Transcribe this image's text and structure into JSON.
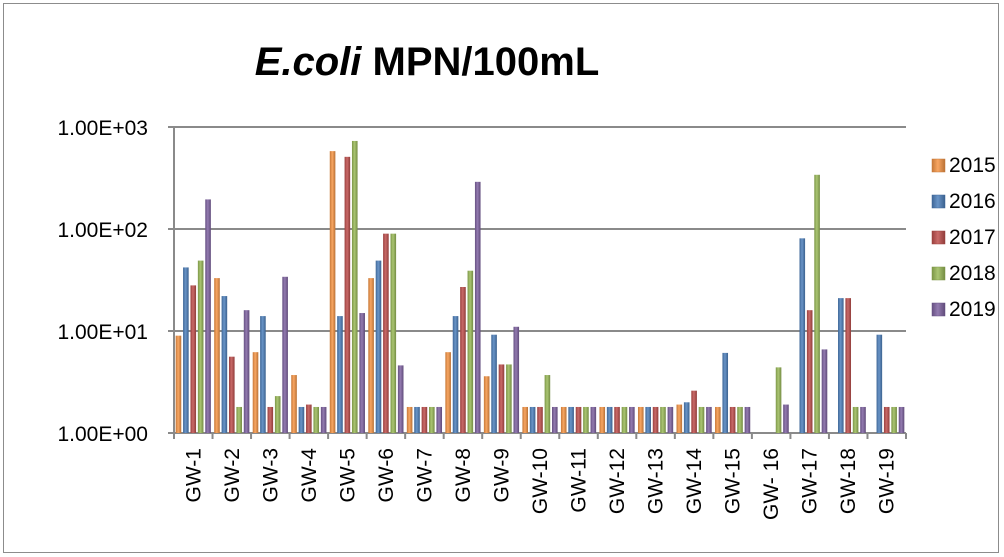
{
  "chart_data": {
    "type": "bar",
    "title_italic": "E.coli",
    "title_rest": " MPN/100mL",
    "xlabel": "",
    "ylabel": "",
    "scale": "log",
    "ylim": [
      1,
      1000
    ],
    "yticks": [
      1,
      10,
      100,
      1000
    ],
    "ytick_labels": [
      "1.00E+00",
      "1.00E+01",
      "1.00E+02",
      "1.00E+03"
    ],
    "grid": true,
    "legend_position": "right",
    "categories": [
      "GW-1",
      "GW-2",
      "GW-3",
      "GW-4",
      "GW-5",
      "GW-6",
      "GW-7",
      "GW-8",
      "GW-9",
      "GW-10",
      "GW-11",
      "GW-12",
      "GW-13",
      "GW-14",
      "GW-15",
      "GW- 16",
      "GW-17",
      "GW-18",
      "GW-19"
    ],
    "series": [
      {
        "name": "2015",
        "color": "#F79646",
        "values": [
          9,
          33,
          6.2,
          3.7,
          580,
          33,
          1.8,
          6.2,
          3.6,
          1.8,
          1.8,
          1.8,
          1.8,
          1.9,
          1.8,
          null,
          null,
          null,
          null
        ]
      },
      {
        "name": "2016",
        "color": "#4F81BD",
        "values": [
          42,
          22,
          14,
          1.8,
          14,
          49,
          1.8,
          14,
          9.2,
          1.8,
          1.8,
          1.8,
          1.8,
          2,
          6.1,
          null,
          81,
          21,
          9.2
        ]
      },
      {
        "name": "2017",
        "color": "#C0504D",
        "values": [
          28,
          5.6,
          1.8,
          1.9,
          510,
          90,
          1.8,
          27,
          4.7,
          1.8,
          1.8,
          1.8,
          1.8,
          2.6,
          1.8,
          null,
          16,
          21,
          1.8
        ]
      },
      {
        "name": "2018",
        "color": "#9BBB59",
        "values": [
          49,
          1.8,
          2.3,
          1.8,
          730,
          90,
          1.8,
          39,
          4.7,
          3.7,
          1.8,
          1.8,
          1.8,
          1.8,
          1.8,
          4.4,
          340,
          1.8,
          1.8
        ]
      },
      {
        "name": "2019",
        "color": "#8064A2",
        "values": [
          195,
          16,
          34,
          1.8,
          15,
          4.6,
          1.8,
          290,
          11,
          1.8,
          1.8,
          1.8,
          1.8,
          1.8,
          1.8,
          1.9,
          6.6,
          1.8,
          1.8
        ]
      }
    ]
  }
}
